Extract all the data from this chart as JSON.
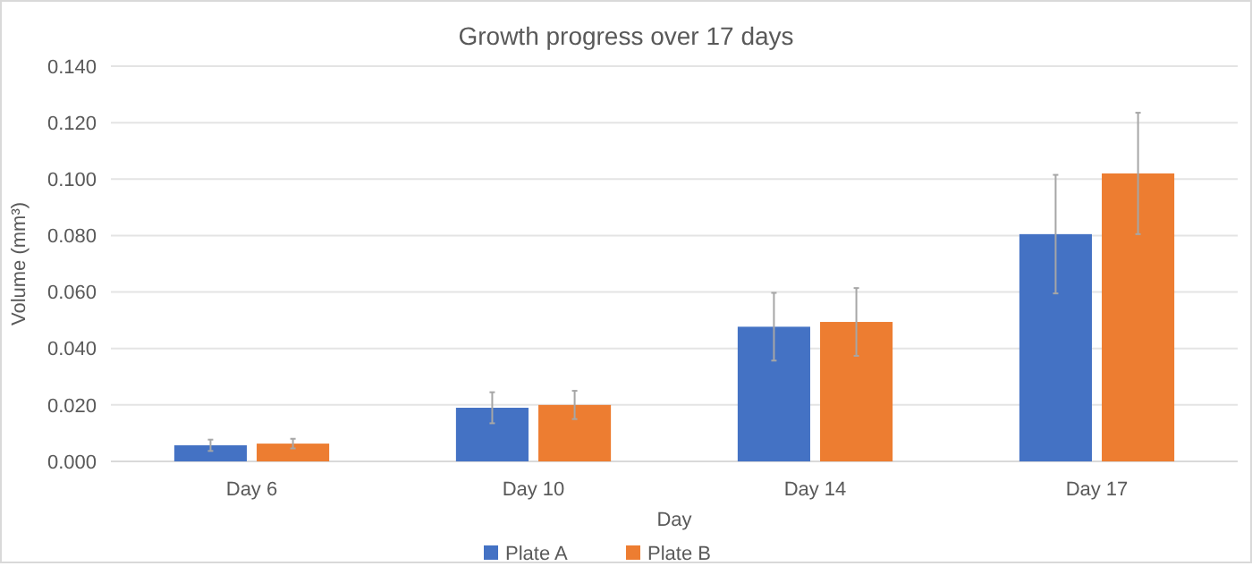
{
  "chart_data": {
    "type": "bar",
    "title": "Growth progress over 17 days",
    "xlabel": "Day",
    "ylabel": "Volume (mm³)",
    "categories": [
      "Day 6",
      "Day 10",
      "Day 14",
      "Day 17"
    ],
    "series": [
      {
        "name": "Plate A",
        "color": "#4472c4",
        "values": [
          0.0057,
          0.019,
          0.0477,
          0.0805
        ],
        "errors": [
          0.002,
          0.0055,
          0.012,
          0.021
        ]
      },
      {
        "name": "Plate B",
        "color": "#ed7d31",
        "values": [
          0.0063,
          0.02,
          0.0494,
          0.102
        ],
        "errors": [
          0.0017,
          0.005,
          0.012,
          0.0215
        ]
      }
    ],
    "ylim": [
      0,
      0.14
    ],
    "yticks": [
      {
        "value": 0,
        "label": "0.000"
      },
      {
        "value": 0.02,
        "label": "0.020"
      },
      {
        "value": 0.04,
        "label": "0.040"
      },
      {
        "value": 0.06,
        "label": "0.060"
      },
      {
        "value": 0.08,
        "label": "0.080"
      },
      {
        "value": 0.1,
        "label": "0.100"
      },
      {
        "value": 0.12,
        "label": "0.120"
      },
      {
        "value": 0.14,
        "label": "0.140"
      }
    ],
    "grid": "y",
    "legend": "bottom"
  }
}
